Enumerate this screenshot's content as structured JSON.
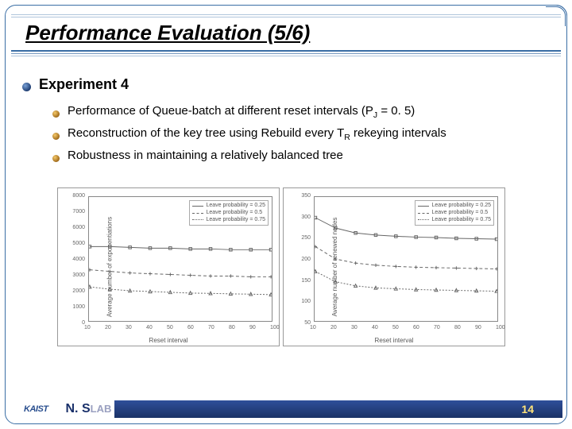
{
  "title": "Performance Evaluation (5/6)",
  "heading": "Experiment 4",
  "bullets": [
    "Performance of Queue-batch at different reset intervals (P",
    "Reconstruction of the key tree using Rebuild every T",
    "Robustness in maintaining a relatively balanced tree"
  ],
  "bullet0_sub": "J",
  "bullet0_tail": " = 0. 5)",
  "bullet1_sub": "R",
  "bullet1_tail": " rekeying intervals",
  "chart_left": {
    "ylabel": "Average number of exponentiations",
    "xlabel": "Reset interval",
    "ylim": [
      0,
      8000
    ],
    "yticks": [
      0,
      1000,
      2000,
      3000,
      4000,
      5000,
      6000,
      7000,
      8000
    ],
    "xlim": [
      10,
      100
    ],
    "xticks": [
      10,
      20,
      30,
      40,
      50,
      60,
      70,
      80,
      90,
      100
    ],
    "legend": [
      "Leave probability = 0.25",
      "Leave probability = 0.5",
      "Leave probability = 0.75"
    ],
    "series": [
      {
        "dash": "",
        "marker": "square",
        "color": "#666",
        "points": [
          [
            10,
            4800
          ],
          [
            20,
            4800
          ],
          [
            30,
            4750
          ],
          [
            40,
            4700
          ],
          [
            50,
            4700
          ],
          [
            60,
            4650
          ],
          [
            70,
            4650
          ],
          [
            80,
            4600
          ],
          [
            90,
            4600
          ],
          [
            100,
            4600
          ]
        ]
      },
      {
        "dash": "4 3",
        "marker": "plus",
        "color": "#666",
        "points": [
          [
            10,
            3300
          ],
          [
            20,
            3200
          ],
          [
            30,
            3100
          ],
          [
            40,
            3050
          ],
          [
            50,
            3000
          ],
          [
            60,
            2950
          ],
          [
            70,
            2900
          ],
          [
            80,
            2900
          ],
          [
            90,
            2850
          ],
          [
            100,
            2850
          ]
        ]
      },
      {
        "dash": "2 2",
        "marker": "triangle",
        "color": "#666",
        "points": [
          [
            10,
            2200
          ],
          [
            20,
            2050
          ],
          [
            30,
            1950
          ],
          [
            40,
            1900
          ],
          [
            50,
            1850
          ],
          [
            60,
            1800
          ],
          [
            70,
            1780
          ],
          [
            80,
            1750
          ],
          [
            90,
            1730
          ],
          [
            100,
            1700
          ]
        ]
      }
    ]
  },
  "chart_right": {
    "ylabel": "Average number of renewed nodes",
    "xlabel": "Reset interval",
    "ylim": [
      50,
      350
    ],
    "yticks": [
      50,
      100,
      150,
      200,
      250,
      300,
      350
    ],
    "xlim": [
      10,
      100
    ],
    "xticks": [
      10,
      20,
      30,
      40,
      50,
      60,
      70,
      80,
      90,
      100
    ],
    "legend": [
      "Leave probability = 0.25",
      "Leave probability = 0.5",
      "Leave probability = 0.75"
    ],
    "series": [
      {
        "dash": "",
        "marker": "square",
        "color": "#666",
        "points": [
          [
            10,
            300
          ],
          [
            20,
            275
          ],
          [
            30,
            263
          ],
          [
            40,
            258
          ],
          [
            50,
            255
          ],
          [
            60,
            253
          ],
          [
            70,
            252
          ],
          [
            80,
            250
          ],
          [
            90,
            249
          ],
          [
            100,
            248
          ]
        ]
      },
      {
        "dash": "4 3",
        "marker": "plus",
        "color": "#666",
        "points": [
          [
            10,
            230
          ],
          [
            20,
            200
          ],
          [
            30,
            190
          ],
          [
            40,
            185
          ],
          [
            50,
            182
          ],
          [
            60,
            180
          ],
          [
            70,
            179
          ],
          [
            80,
            178
          ],
          [
            90,
            177
          ],
          [
            100,
            176
          ]
        ]
      },
      {
        "dash": "2 2",
        "marker": "triangle",
        "color": "#666",
        "points": [
          [
            10,
            170
          ],
          [
            20,
            145
          ],
          [
            30,
            135
          ],
          [
            40,
            130
          ],
          [
            50,
            128
          ],
          [
            60,
            126
          ],
          [
            70,
            125
          ],
          [
            80,
            124
          ],
          [
            90,
            123
          ],
          [
            100,
            122
          ]
        ]
      }
    ]
  },
  "footer": {
    "kaist": "KAIST",
    "nslab": "N. S",
    "nslab_tail": "LAB",
    "page": "14"
  },
  "colors": {
    "frame": "#3a6ea5",
    "footer_grad_top": "#2f4f9a",
    "footer_grad_bot": "#1a3266",
    "pagenum": "#ffe37a"
  }
}
